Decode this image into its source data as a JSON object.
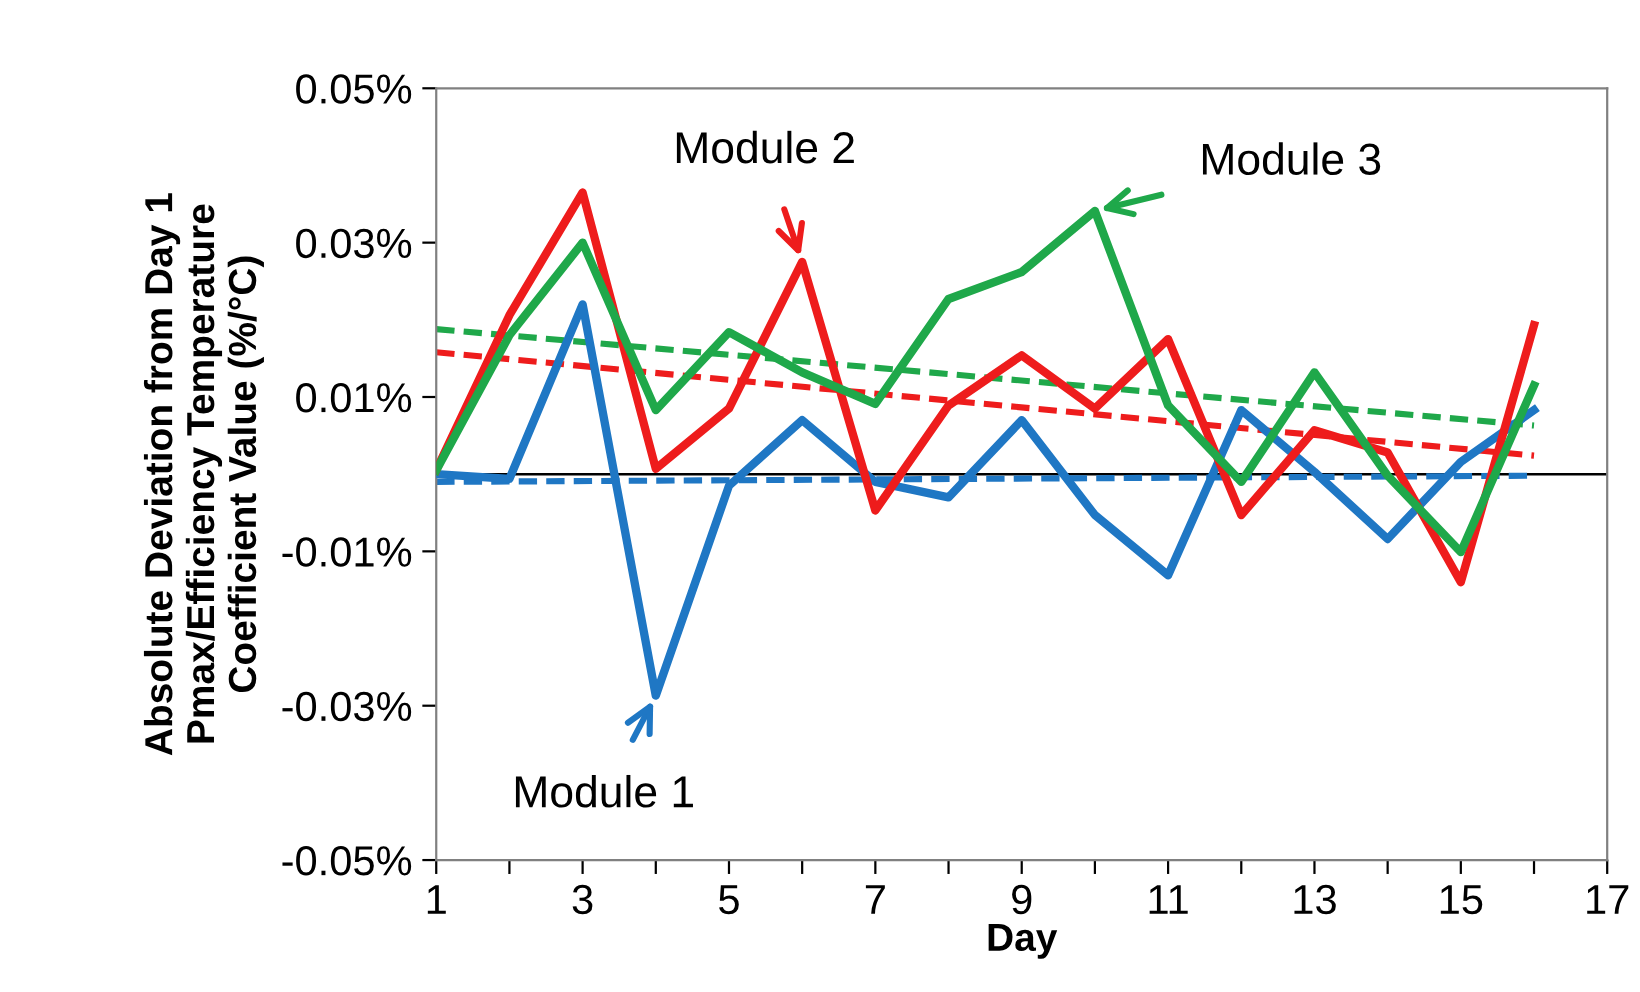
{
  "chart_data": {
    "type": "line",
    "xlabel": "Day",
    "ylabel": "Absolute Deviation from Day 1\nPmax/Efficiency Temperature\nCoefficient Value (%/°C)",
    "xlim": [
      1,
      17
    ],
    "xticks": [
      1,
      {
        "value": 2,
        "label": null
      },
      3,
      {
        "value": 4,
        "label": null
      },
      5,
      {
        "value": 6,
        "label": null
      },
      7,
      {
        "value": 8,
        "label": null
      },
      9,
      {
        "value": 10,
        "label": null
      },
      11,
      {
        "value": 12,
        "label": null
      },
      13,
      {
        "value": 14,
        "label": null
      },
      15,
      {
        "value": 16,
        "label": null
      },
      17
    ],
    "ylim": [
      -0.05,
      0.05
    ],
    "yticks": [
      {
        "value": -0.05,
        "label": "-0.05%"
      },
      {
        "value": -0.03,
        "label": "-0.03%"
      },
      {
        "value": -0.01,
        "label": "-0.01%"
      },
      {
        "value": 0.01,
        "label": "0.01%"
      },
      {
        "value": 0.03,
        "label": "0.03%"
      },
      {
        "value": 0.05,
        "label": "0.05%"
      }
    ],
    "grid": false,
    "legend": false,
    "marker": "none",
    "line_style": "solid",
    "x": [
      1,
      2,
      3,
      4,
      5,
      6,
      7,
      8,
      9,
      10,
      11,
      12,
      13,
      14,
      15,
      16
    ],
    "series": [
      {
        "color": "#1f77c4",
        "values": [
          0.0,
          -0.0006,
          0.022,
          -0.0287,
          -0.0015,
          0.007,
          -0.001,
          -0.003,
          0.007,
          -0.0053,
          -0.0131,
          0.0083,
          0.0003,
          -0.0084,
          0.0016,
          0.0083
        ]
      },
      {
        "color": "#ee1c1c",
        "values": [
          0.0005,
          0.0206,
          0.0365,
          0.0007,
          0.0085,
          0.0275,
          -0.0047,
          0.0089,
          0.0154,
          0.0085,
          0.0175,
          -0.0053,
          0.0057,
          0.0028,
          -0.014,
          0.0193
        ]
      },
      {
        "color": "#1fa84a",
        "values": [
          0.0005,
          0.018,
          0.03,
          0.0083,
          0.0184,
          0.0132,
          0.0091,
          0.0227,
          0.0262,
          0.0341,
          0.0089,
          -0.001,
          0.0132,
          -0.0002,
          -0.0101,
          0.0115
        ]
      },
      {
        "color": "#1f77c4",
        "values": [
          -0.001,
          null,
          null,
          null,
          null,
          null,
          null,
          null,
          null,
          null,
          null,
          null,
          null,
          null,
          null,
          -0.0002
        ],
        "line_style": "dashed"
      },
      {
        "color": "#ee1c1c",
        "values": [
          0.0158,
          null,
          null,
          null,
          null,
          null,
          null,
          null,
          null,
          null,
          null,
          null,
          null,
          null,
          null,
          0.0024
        ],
        "line_style": "dashed"
      },
      {
        "color": "#1fa84a",
        "values": [
          0.0188,
          null,
          null,
          null,
          null,
          null,
          null,
          null,
          null,
          null,
          null,
          null,
          null,
          null,
          null,
          0.0063
        ],
        "line_style": "dashed"
      }
    ],
    "ref_lines": [
      {
        "axis": "y",
        "value": 0,
        "color": "#000000"
      }
    ],
    "annotations": [
      {
        "text": "Module 1",
        "x": 4,
        "y": -0.0287
      },
      {
        "text": "Module 2",
        "x": 6,
        "y": 0.0275
      },
      {
        "text": "Module 3",
        "x": 10,
        "y": 0.0341
      }
    ]
  }
}
